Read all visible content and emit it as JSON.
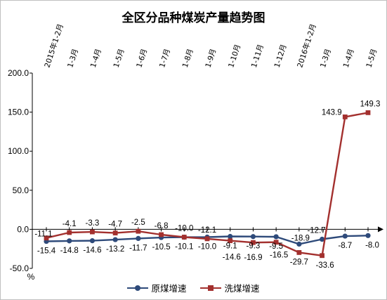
{
  "chart_data": {
    "type": "line",
    "title": "全区分品种煤炭产量趋势图",
    "ylabel": "%",
    "ylim": [
      -50,
      200
    ],
    "yticks": [
      "200.0",
      "150.0",
      "100.0",
      "50.0",
      "0.0",
      "-50.0"
    ],
    "grid": false,
    "legend_position": "bottom",
    "categories": [
      "2015年1-2月",
      "1-3月",
      "1-4月",
      "1-5月",
      "1-6月",
      "1-7月",
      "1-8月",
      "1-9月",
      "1-10月",
      "1-11月",
      "1-12月",
      "2016年1-2月",
      "1-3月",
      "1-4月",
      "1-5月"
    ],
    "series": [
      {
        "name": "原煤增速",
        "color": "#2e4a7a",
        "marker": "circle",
        "values": [
          -15.4,
          -14.8,
          -14.6,
          -13.2,
          -11.7,
          -10.5,
          -10.1,
          -10.0,
          -9.1,
          -9.3,
          -9.5,
          -18.9,
          -12.7,
          -8.7,
          -8.0
        ],
        "labels": [
          "-15.4",
          "-14.8",
          "-14.6",
          "-13.2",
          "-11.7",
          "-10.5",
          "-10.1",
          "-10.0",
          "-9.1",
          "-9.3",
          "-9.5",
          "-18.9",
          "-12.7",
          "-8.7",
          "-8.0"
        ]
      },
      {
        "name": "洗煤增速",
        "color": "#a3302e",
        "marker": "square",
        "values": [
          -11.1,
          -4.1,
          -3.3,
          -4.7,
          -2.5,
          -6.8,
          -10.0,
          -12.1,
          -14.6,
          -16.9,
          -16.5,
          -29.7,
          -33.6,
          143.9,
          149.3
        ],
        "labels": [
          "-11.1",
          "-4.1",
          "-3.3",
          "-4.7",
          "-2.5",
          "-6.8",
          "-10.0",
          "-12.1",
          "-14.6",
          "-16.9",
          "-16.5",
          "-29.7",
          "-33.6",
          "143.9",
          "149.3"
        ]
      }
    ]
  }
}
